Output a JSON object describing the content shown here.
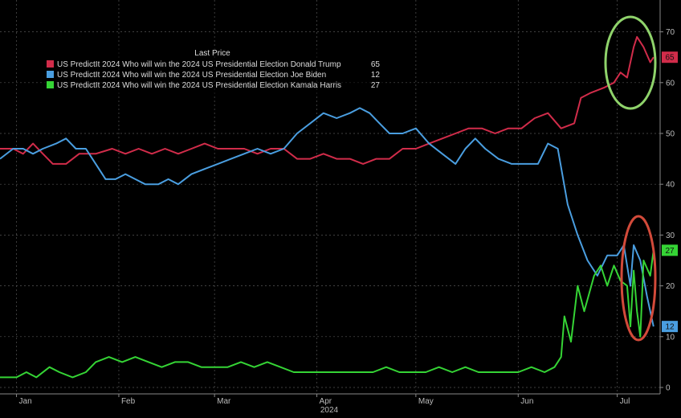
{
  "chart_data": {
    "type": "line",
    "title": "",
    "xlabel": "2024",
    "ylabel": "",
    "legend_title": "Last Price",
    "legend_position": "top-left",
    "grid": true,
    "ylim": [
      0,
      75
    ],
    "yticks": [
      0,
      10,
      20,
      30,
      40,
      50,
      60,
      70
    ],
    "xticks": [
      {
        "label": "Jan",
        "date": "2024-01-01"
      },
      {
        "label": "Feb",
        "date": "2024-02-01"
      },
      {
        "label": "Mar",
        "date": "2024-03-01"
      },
      {
        "label": "Apr",
        "date": "2024-04-01"
      },
      {
        "label": "May",
        "date": "2024-05-01"
      },
      {
        "label": "Jun",
        "date": "2024-06-01"
      },
      {
        "label": "Jul",
        "date": "2024-07-01"
      }
    ],
    "xrange": [
      "2023-12-27",
      "2024-07-14"
    ],
    "series": [
      {
        "name": "US PredictIt 2024 Who will win the 2024 US Presidential Election Donald Trump",
        "last": "65",
        "color": "#d12c4a",
        "points": [
          [
            "2023-12-27",
            47
          ],
          [
            "2023-12-31",
            47
          ],
          [
            "2024-01-03",
            46
          ],
          [
            "2024-01-06",
            48
          ],
          [
            "2024-01-09",
            46
          ],
          [
            "2024-01-12",
            44
          ],
          [
            "2024-01-16",
            44
          ],
          [
            "2024-01-20",
            46
          ],
          [
            "2024-01-25",
            46
          ],
          [
            "2024-01-30",
            47
          ],
          [
            "2024-02-03",
            46
          ],
          [
            "2024-02-07",
            47
          ],
          [
            "2024-02-11",
            46
          ],
          [
            "2024-02-15",
            47
          ],
          [
            "2024-02-19",
            46
          ],
          [
            "2024-02-23",
            47
          ],
          [
            "2024-02-27",
            48
          ],
          [
            "2024-03-02",
            47
          ],
          [
            "2024-03-06",
            47
          ],
          [
            "2024-03-10",
            47
          ],
          [
            "2024-03-14",
            46
          ],
          [
            "2024-03-18",
            47
          ],
          [
            "2024-03-22",
            47
          ],
          [
            "2024-03-26",
            45
          ],
          [
            "2024-03-30",
            45
          ],
          [
            "2024-04-03",
            46
          ],
          [
            "2024-04-07",
            45
          ],
          [
            "2024-04-11",
            45
          ],
          [
            "2024-04-15",
            44
          ],
          [
            "2024-04-19",
            45
          ],
          [
            "2024-04-23",
            45
          ],
          [
            "2024-04-27",
            47
          ],
          [
            "2024-05-01",
            47
          ],
          [
            "2024-05-05",
            48
          ],
          [
            "2024-05-09",
            49
          ],
          [
            "2024-05-13",
            50
          ],
          [
            "2024-05-17",
            51
          ],
          [
            "2024-05-21",
            51
          ],
          [
            "2024-05-25",
            50
          ],
          [
            "2024-05-29",
            51
          ],
          [
            "2024-06-02",
            51
          ],
          [
            "2024-06-06",
            53
          ],
          [
            "2024-06-10",
            54
          ],
          [
            "2024-06-14",
            51
          ],
          [
            "2024-06-18",
            52
          ],
          [
            "2024-06-20",
            57
          ],
          [
            "2024-06-23",
            58
          ],
          [
            "2024-06-27",
            59
          ],
          [
            "2024-06-30",
            60
          ],
          [
            "2024-07-02",
            62
          ],
          [
            "2024-07-04",
            61
          ],
          [
            "2024-07-06",
            67
          ],
          [
            "2024-07-07",
            69
          ],
          [
            "2024-07-09",
            67
          ],
          [
            "2024-07-11",
            64
          ],
          [
            "2024-07-12",
            65
          ]
        ]
      },
      {
        "name": "US PredictIt 2024 Who will win the 2024 US Presidential Election Joe Biden",
        "last": "12",
        "color": "#4a9ee0",
        "points": [
          [
            "2023-12-27",
            45
          ],
          [
            "2023-12-31",
            47
          ],
          [
            "2024-01-03",
            47
          ],
          [
            "2024-01-06",
            46
          ],
          [
            "2024-01-09",
            47
          ],
          [
            "2024-01-13",
            48
          ],
          [
            "2024-01-16",
            49
          ],
          [
            "2024-01-19",
            47
          ],
          [
            "2024-01-22",
            47
          ],
          [
            "2024-01-25",
            44
          ],
          [
            "2024-01-28",
            41
          ],
          [
            "2024-01-31",
            41
          ],
          [
            "2024-02-03",
            42
          ],
          [
            "2024-02-06",
            41
          ],
          [
            "2024-02-09",
            40
          ],
          [
            "2024-02-13",
            40
          ],
          [
            "2024-02-16",
            41
          ],
          [
            "2024-02-19",
            40
          ],
          [
            "2024-02-23",
            42
          ],
          [
            "2024-02-27",
            43
          ],
          [
            "2024-03-02",
            44
          ],
          [
            "2024-03-06",
            45
          ],
          [
            "2024-03-10",
            46
          ],
          [
            "2024-03-14",
            47
          ],
          [
            "2024-03-18",
            46
          ],
          [
            "2024-03-22",
            47
          ],
          [
            "2024-03-26",
            50
          ],
          [
            "2024-03-30",
            52
          ],
          [
            "2024-04-03",
            54
          ],
          [
            "2024-04-07",
            53
          ],
          [
            "2024-04-11",
            54
          ],
          [
            "2024-04-14",
            55
          ],
          [
            "2024-04-17",
            54
          ],
          [
            "2024-04-20",
            52
          ],
          [
            "2024-04-23",
            50
          ],
          [
            "2024-04-27",
            50
          ],
          [
            "2024-05-01",
            51
          ],
          [
            "2024-05-05",
            48
          ],
          [
            "2024-05-09",
            46
          ],
          [
            "2024-05-13",
            44
          ],
          [
            "2024-05-16",
            47
          ],
          [
            "2024-05-19",
            49
          ],
          [
            "2024-05-22",
            47
          ],
          [
            "2024-05-26",
            45
          ],
          [
            "2024-05-30",
            44
          ],
          [
            "2024-06-03",
            44
          ],
          [
            "2024-06-07",
            44
          ],
          [
            "2024-06-10",
            48
          ],
          [
            "2024-06-13",
            47
          ],
          [
            "2024-06-16",
            36
          ],
          [
            "2024-06-19",
            30
          ],
          [
            "2024-06-22",
            25
          ],
          [
            "2024-06-25",
            22
          ],
          [
            "2024-06-28",
            26
          ],
          [
            "2024-07-01",
            26
          ],
          [
            "2024-07-03",
            28
          ],
          [
            "2024-07-05",
            20
          ],
          [
            "2024-07-06",
            28
          ],
          [
            "2024-07-08",
            25
          ],
          [
            "2024-07-10",
            18
          ],
          [
            "2024-07-11",
            15
          ],
          [
            "2024-07-12",
            12
          ]
        ]
      },
      {
        "name": "US PredictIt 2024 Who will win the 2024 US Presidential Election Kamala Harris",
        "last": "27",
        "color": "#35d435",
        "points": [
          [
            "2023-12-27",
            2
          ],
          [
            "2024-01-01",
            2
          ],
          [
            "2024-01-04",
            3
          ],
          [
            "2024-01-07",
            2
          ],
          [
            "2024-01-11",
            4
          ],
          [
            "2024-01-14",
            3
          ],
          [
            "2024-01-18",
            2
          ],
          [
            "2024-01-22",
            3
          ],
          [
            "2024-01-25",
            5
          ],
          [
            "2024-01-29",
            6
          ],
          [
            "2024-02-02",
            5
          ],
          [
            "2024-02-06",
            6
          ],
          [
            "2024-02-10",
            5
          ],
          [
            "2024-02-14",
            4
          ],
          [
            "2024-02-18",
            5
          ],
          [
            "2024-02-22",
            5
          ],
          [
            "2024-02-26",
            4
          ],
          [
            "2024-03-01",
            4
          ],
          [
            "2024-03-05",
            4
          ],
          [
            "2024-03-09",
            5
          ],
          [
            "2024-03-13",
            4
          ],
          [
            "2024-03-17",
            5
          ],
          [
            "2024-03-21",
            4
          ],
          [
            "2024-03-25",
            3
          ],
          [
            "2024-03-29",
            3
          ],
          [
            "2024-04-02",
            3
          ],
          [
            "2024-04-06",
            3
          ],
          [
            "2024-04-10",
            3
          ],
          [
            "2024-04-14",
            3
          ],
          [
            "2024-04-18",
            3
          ],
          [
            "2024-04-22",
            4
          ],
          [
            "2024-04-26",
            3
          ],
          [
            "2024-04-30",
            3
          ],
          [
            "2024-05-04",
            3
          ],
          [
            "2024-05-08",
            4
          ],
          [
            "2024-05-12",
            3
          ],
          [
            "2024-05-16",
            4
          ],
          [
            "2024-05-20",
            3
          ],
          [
            "2024-05-24",
            3
          ],
          [
            "2024-05-28",
            3
          ],
          [
            "2024-06-01",
            3
          ],
          [
            "2024-06-05",
            4
          ],
          [
            "2024-06-09",
            3
          ],
          [
            "2024-06-12",
            4
          ],
          [
            "2024-06-14",
            6
          ],
          [
            "2024-06-15",
            14
          ],
          [
            "2024-06-17",
            9
          ],
          [
            "2024-06-19",
            20
          ],
          [
            "2024-06-21",
            15
          ],
          [
            "2024-06-24",
            22
          ],
          [
            "2024-06-26",
            24
          ],
          [
            "2024-06-28",
            20
          ],
          [
            "2024-06-30",
            24
          ],
          [
            "2024-07-02",
            21
          ],
          [
            "2024-07-04",
            20
          ],
          [
            "2024-07-05",
            12
          ],
          [
            "2024-07-06",
            23
          ],
          [
            "2024-07-07",
            15
          ],
          [
            "2024-07-08",
            10
          ],
          [
            "2024-07-09",
            25
          ],
          [
            "2024-07-11",
            22
          ],
          [
            "2024-07-12",
            27
          ]
        ]
      }
    ],
    "annotations": [
      {
        "type": "ellipse",
        "color": "#8fd36b",
        "around": "Donald Trump recent peak"
      },
      {
        "type": "ellipse",
        "color": "#d24a3a",
        "around": "Biden / Harris crossover"
      }
    ]
  }
}
